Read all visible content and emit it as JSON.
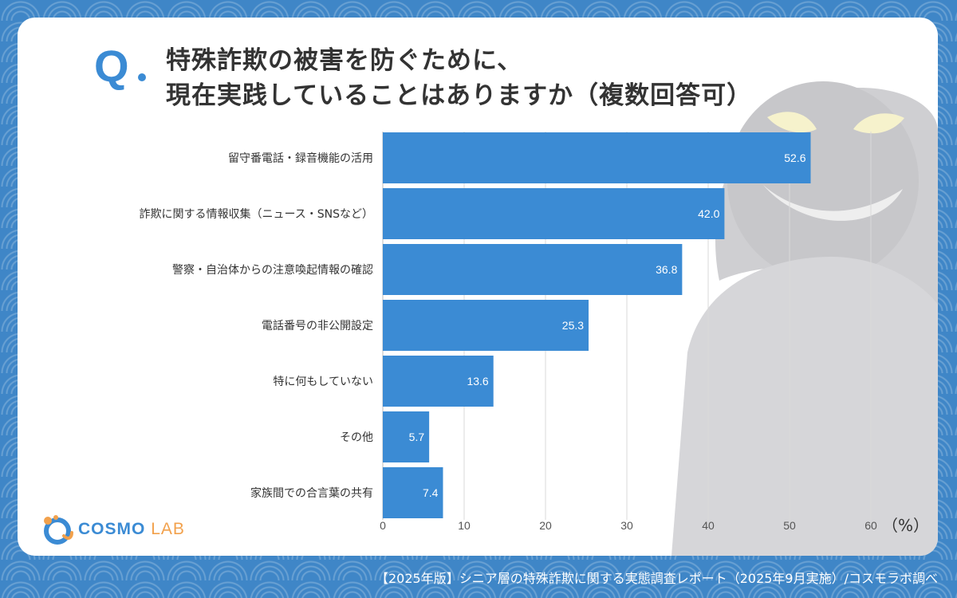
{
  "question": {
    "mark": "Q",
    "line1": "特殊詐欺の被害を防ぐために、",
    "line2": "現在実践していることはありますか（複数回答可）"
  },
  "chart_data": {
    "type": "bar",
    "orientation": "horizontal",
    "categories": [
      "留守番電話・録音機能の活用",
      "詐欺に関する情報収集（ニュース・SNSなど）",
      "警察・自治体からの注意喚起情報の確認",
      "電話番号の非公開設定",
      "特に何もしていない",
      "その他",
      "家族間での合言葉の共有"
    ],
    "values": [
      52.6,
      42.0,
      36.8,
      25.3,
      13.6,
      5.7,
      7.4
    ],
    "value_labels": [
      "52.6",
      "42.0",
      "36.8",
      "25.3",
      "13.6",
      "5.7",
      "7.4"
    ],
    "xlim": [
      0,
      60
    ],
    "xticks": [
      0,
      10,
      20,
      30,
      40,
      50,
      60
    ],
    "unit_label": "（%）",
    "grid": "vertical",
    "bar_color": "#3b8bd4"
  },
  "logo": {
    "main": "COSMO",
    "sub": "LAB"
  },
  "footer": "【2025年版】シニア層の特殊詐欺に関する実態調査レポート（2025年9月実施）/コスモラボ調べ",
  "colors": {
    "background": "#3f86c7",
    "accent": "#3b8bd4",
    "logo_sub": "#f2a14c",
    "card": "#ffffff"
  }
}
